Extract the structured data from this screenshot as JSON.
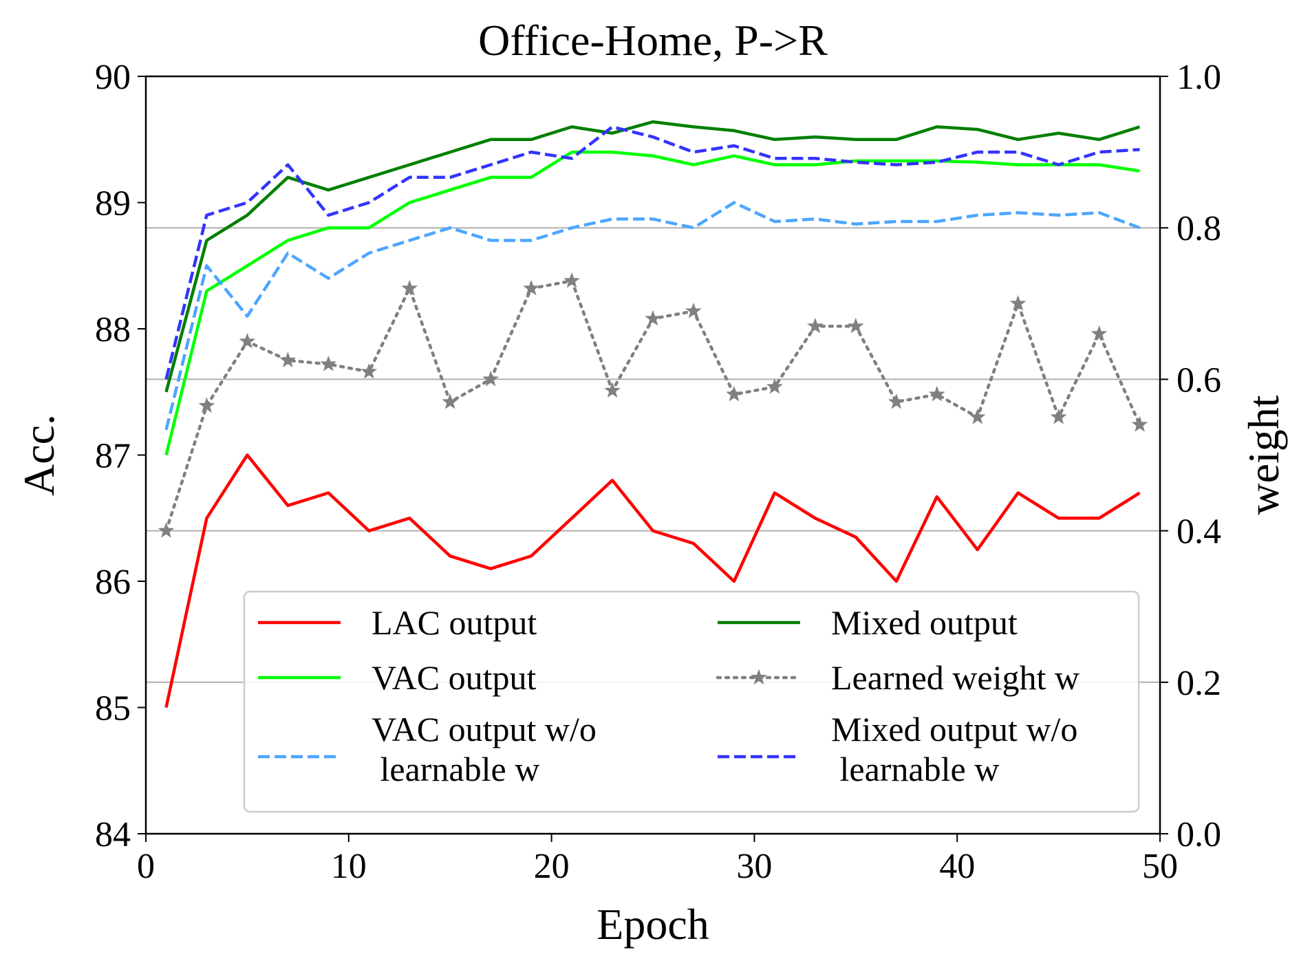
{
  "chart_data": {
    "type": "line",
    "title": "Office-Home, P->R",
    "xlabel": "Epoch",
    "ylabel": "Acc.",
    "y2label": "weight",
    "xlim": [
      0,
      50
    ],
    "ylim": [
      84,
      90
    ],
    "y2lim": [
      0.0,
      1.0
    ],
    "x_ticks": [
      0,
      10,
      20,
      30,
      40,
      50
    ],
    "y_ticks": [
      84,
      85,
      86,
      87,
      88,
      89,
      90
    ],
    "y2_ticks": [
      "0.0",
      "0.2",
      "0.4",
      "0.6",
      "0.8",
      "1.0"
    ],
    "grid": "right-axis horizontal lines",
    "legend_position": "lower-center",
    "x": [
      1,
      3,
      5,
      7,
      9,
      11,
      13,
      15,
      17,
      19,
      21,
      23,
      25,
      27,
      29,
      31,
      33,
      35,
      37,
      39,
      41,
      43,
      45,
      47,
      49
    ],
    "series": [
      {
        "name": "LAC output",
        "axis": "left",
        "color": "#ff0000",
        "style": "solid",
        "values": [
          85.0,
          86.5,
          87.0,
          86.6,
          86.7,
          86.4,
          86.5,
          86.2,
          86.1,
          86.2,
          86.5,
          86.8,
          86.4,
          86.3,
          86.0,
          86.7,
          86.5,
          86.35,
          86.0,
          86.67,
          86.25,
          86.7,
          86.5,
          86.5,
          86.7
        ]
      },
      {
        "name": "Mixed output",
        "axis": "left",
        "color": "#007f00",
        "style": "solid",
        "values": [
          87.5,
          88.7,
          88.9,
          89.2,
          89.1,
          89.2,
          89.3,
          89.4,
          89.5,
          89.5,
          89.6,
          89.55,
          89.64,
          89.6,
          89.57,
          89.5,
          89.52,
          89.5,
          89.5,
          89.6,
          89.58,
          89.5,
          89.55,
          89.5,
          89.6
        ]
      },
      {
        "name": "VAC output",
        "axis": "left",
        "color": "#00ff00",
        "style": "solid",
        "values": [
          87.0,
          88.3,
          88.5,
          88.7,
          88.8,
          88.8,
          89.0,
          89.1,
          89.2,
          89.2,
          89.4,
          89.4,
          89.37,
          89.3,
          89.37,
          89.3,
          89.3,
          89.33,
          89.33,
          89.33,
          89.32,
          89.3,
          89.3,
          89.3,
          89.25
        ]
      },
      {
        "name": "Learned weight w",
        "axis": "right",
        "color": "#808080",
        "style": "dotted-star",
        "values": [
          0.4,
          0.565,
          0.65,
          0.625,
          0.62,
          0.61,
          0.72,
          0.57,
          0.6,
          0.72,
          0.73,
          0.585,
          0.68,
          0.69,
          0.58,
          0.59,
          0.67,
          0.67,
          0.57,
          0.58,
          0.55,
          0.7,
          0.55,
          0.66,
          0.54
        ]
      },
      {
        "name": "VAC output w/o\n learnable w",
        "axis": "left",
        "color": "#4da6ff",
        "style": "dashed",
        "values": [
          87.2,
          88.5,
          88.1,
          88.6,
          88.4,
          88.6,
          88.7,
          88.8,
          88.7,
          88.7,
          88.8,
          88.87,
          88.87,
          88.8,
          89.0,
          88.85,
          88.87,
          88.83,
          88.85,
          88.85,
          88.9,
          88.92,
          88.9,
          88.92,
          88.8
        ]
      },
      {
        "name": "Mixed output w/o\n learnable w",
        "axis": "left",
        "color": "#3333ff",
        "style": "dashed",
        "values": [
          87.6,
          88.9,
          89.0,
          89.3,
          88.9,
          89.0,
          89.2,
          89.2,
          89.3,
          89.4,
          89.35,
          89.6,
          89.52,
          89.4,
          89.45,
          89.35,
          89.35,
          89.32,
          89.3,
          89.32,
          89.4,
          89.4,
          89.3,
          89.4,
          89.42
        ]
      }
    ]
  }
}
